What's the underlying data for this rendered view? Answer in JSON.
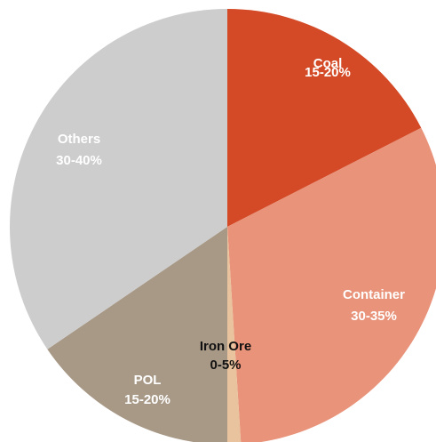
{
  "chart_data": {
    "type": "pie",
    "categories": [
      "Coal",
      "Container",
      "Iron Ore",
      "POL",
      "Others"
    ],
    "values": [
      17.5,
      31.5,
      1,
      15.5,
      34.5
    ],
    "value_labels": [
      "15-20%",
      "30-35%",
      "0-5%",
      "15-20%",
      "30-40%"
    ],
    "colors": [
      "#d44a26",
      "#e8937a",
      "#e9c39d",
      "#a89987",
      "#cdcdcd"
    ],
    "label_colors": [
      "#ffffff",
      "#ffffff",
      "#111111",
      "#ffffff",
      "#ffffff"
    ]
  }
}
